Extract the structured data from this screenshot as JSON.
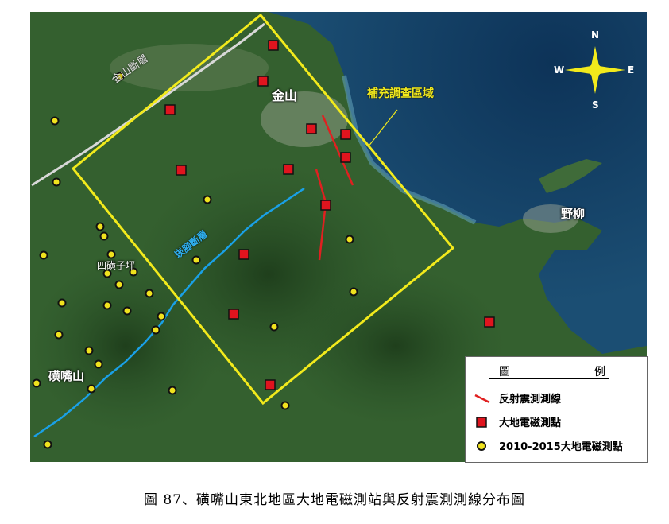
{
  "labels": {
    "jinshan_fault": "金山斷層",
    "jinshan": "金山",
    "survey_area": "補充調查區域",
    "yeliu": "野柳",
    "shanjiao_fault": "崁腳斷層",
    "sihuangziping": "四磺子坪",
    "huangzuishan": "磺嘴山"
  },
  "compass": {
    "n": "N",
    "s": "S",
    "e": "E",
    "w": "W"
  },
  "legend": {
    "title_left": "圖",
    "title_right": "例",
    "items": [
      {
        "label": "反射震測測線",
        "icon": "red-line-icon"
      },
      {
        "label": "大地電磁測點",
        "icon": "red-square-icon"
      },
      {
        "label": "2010-2015大地電磁測點",
        "icon": "yellow-circle-icon"
      }
    ]
  },
  "caption": "圖 87、磺嘴山東北地區大地電磁測站與反射震測測線分布圖",
  "colors": {
    "survey_box": "#f2ea1c",
    "reflection_line": "#e02020",
    "mt_point": "#e0141e",
    "old_mt_point": "#f0e21e",
    "fault_white": "#d8d8d8",
    "fault_blue": "#1aa0e6",
    "sea": "#123f66",
    "land": "#2f5a2c"
  }
}
